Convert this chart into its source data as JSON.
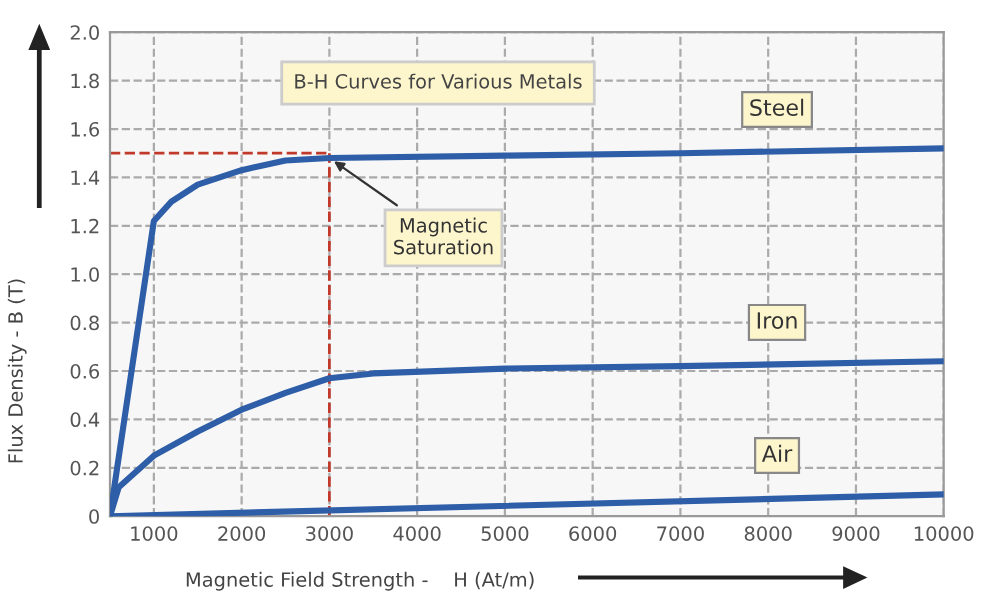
{
  "chart_data": {
    "type": "line",
    "title": "B-H Curves for Various Metals",
    "xlabel": "Magnetic Field Strength -    H (At/m)",
    "ylabel": "Flux Density - B (T)",
    "series": [
      {
        "name": "Steel",
        "color": "#2e5ea8",
        "x": [
          500,
          1000,
          1200,
          1500,
          2000,
          2500,
          3000,
          5000,
          7000,
          10000
        ],
        "values": [
          0,
          1.22,
          1.3,
          1.37,
          1.43,
          1.47,
          1.48,
          1.49,
          1.5,
          1.52
        ]
      },
      {
        "name": "Iron",
        "color": "#2e5ea8",
        "x": [
          500,
          600,
          1000,
          1500,
          2000,
          2500,
          3000,
          3500,
          5000,
          7000,
          10000
        ],
        "values": [
          0,
          0.12,
          0.25,
          0.35,
          0.44,
          0.51,
          0.57,
          0.59,
          0.61,
          0.62,
          0.64
        ]
      },
      {
        "name": "Air",
        "color": "#2e5ea8",
        "x": [
          500,
          10000
        ],
        "values": [
          0,
          0.09
        ]
      }
    ],
    "xlim": [
      500,
      10000
    ],
    "xticks": [
      1000,
      2000,
      3000,
      4000,
      5000,
      6000,
      7000,
      8000,
      9000,
      10000
    ],
    "ylim": [
      0,
      2.0
    ],
    "yticks": [
      0,
      0.2,
      0.4,
      0.6,
      {
        "value": 0.8,
        "label": "0.8"
      },
      {
        "value": 1.0,
        "label": "1.0"
      },
      1.2,
      1.4,
      1.6,
      1.8,
      {
        "value": 2.0,
        "label": "2.0"
      }
    ],
    "ref_lines": [
      {
        "axis": "y",
        "value": 1.5,
        "color": "#c0392b",
        "line_style": "dashed"
      },
      {
        "axis": "x",
        "value": 3000,
        "color": "#c0392b",
        "line_style": "dashed"
      }
    ],
    "annotations": [
      {
        "text": "Magnetic\nSaturation",
        "x": 3000,
        "y": 1.48
      }
    ],
    "grid": true,
    "legend": false,
    "marker": "none",
    "line_style": "solid"
  }
}
